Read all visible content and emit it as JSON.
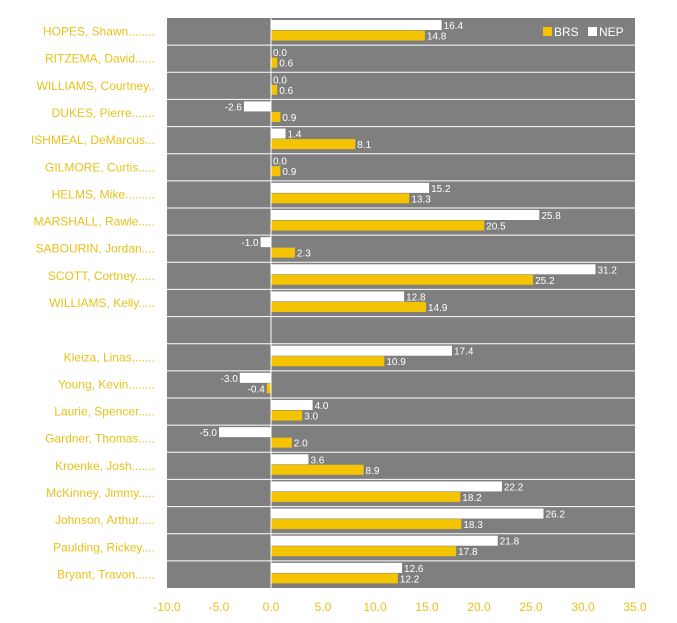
{
  "chart_data": {
    "type": "bar",
    "orientation": "horizontal",
    "categories": [
      "HOPES, Shawn........",
      "RITZEMA, David......",
      "WILLIAMS, Courtney..",
      "DUKES, Pierre.......",
      "ISHMEAL, DeMarcus...",
      "GILMORE, Curtis.....",
      "HELMS, Mike.........",
      "MARSHALL, Rawle.....",
      "SABOURIN, Jordan....",
      "SCOTT, Cortney......",
      "WILLIAMS, Kelly.....",
      "",
      "Kleiza, Linas.......",
      "Young, Kevin........",
      "Laurie, Spencer.....",
      "Gardner, Thomas.....",
      "Kroenke, Josh.......",
      "McKinney, Jimmy.....",
      "Johnson, Arthur.....",
      "Paulding, Rickey....",
      "Bryant, Travon......"
    ],
    "series": [
      {
        "name": "NEP",
        "color": "#ffffff",
        "values": [
          16.4,
          0.0,
          0.0,
          -2.6,
          1.4,
          0.0,
          15.2,
          25.8,
          -1.0,
          31.2,
          12.8,
          null,
          17.4,
          -3.0,
          4.0,
          -5.0,
          3.6,
          22.2,
          26.2,
          21.8,
          12.6
        ],
        "labels": [
          "16.4",
          "0.0",
          "0.0",
          "-2.6",
          "1.4",
          "0.0",
          "15.2",
          "25.8",
          "-1.0",
          "31.2",
          "12.8",
          "",
          "17.4",
          "-3.0",
          "4.0",
          "-5.0",
          "3.6",
          "22.2",
          "26.2",
          "21.8",
          "12.6"
        ]
      },
      {
        "name": "BRS",
        "color": "#f5c400",
        "values": [
          14.8,
          0.6,
          0.6,
          0.9,
          8.1,
          0.9,
          13.3,
          20.5,
          2.3,
          25.2,
          14.9,
          null,
          10.9,
          -0.4,
          3.0,
          2.0,
          8.9,
          18.2,
          18.3,
          17.8,
          12.2
        ],
        "labels": [
          "14.8",
          "0.6",
          "0.6",
          "0.9",
          "8.1",
          "0.9",
          "13.3",
          "20.5",
          "2.3",
          "25.2",
          "14.9",
          "",
          "10.9",
          "-0.4",
          "3.0",
          "2.0",
          "8.9",
          "18.2",
          "18.3",
          "17.8",
          "12.2"
        ]
      }
    ],
    "xlim": [
      -10,
      35
    ],
    "xticks": [
      -10,
      -5,
      0,
      5,
      10,
      15,
      20,
      25,
      30,
      35
    ],
    "xtick_labels": [
      "-10.0",
      "-5.0",
      "0.0",
      "5.0",
      "10.0",
      "15.0",
      "20.0",
      "25.0",
      "30.0",
      "35.0"
    ],
    "legend": {
      "placement": "top-right",
      "order": [
        "BRS",
        "NEP"
      ]
    },
    "colors": {
      "plot_bg": "#7f7f7f",
      "row_separator": "#ffffff",
      "label_text": "#e8c21a",
      "zero_line": "#ffffff"
    },
    "title": "",
    "xlabel": "",
    "ylabel": ""
  }
}
